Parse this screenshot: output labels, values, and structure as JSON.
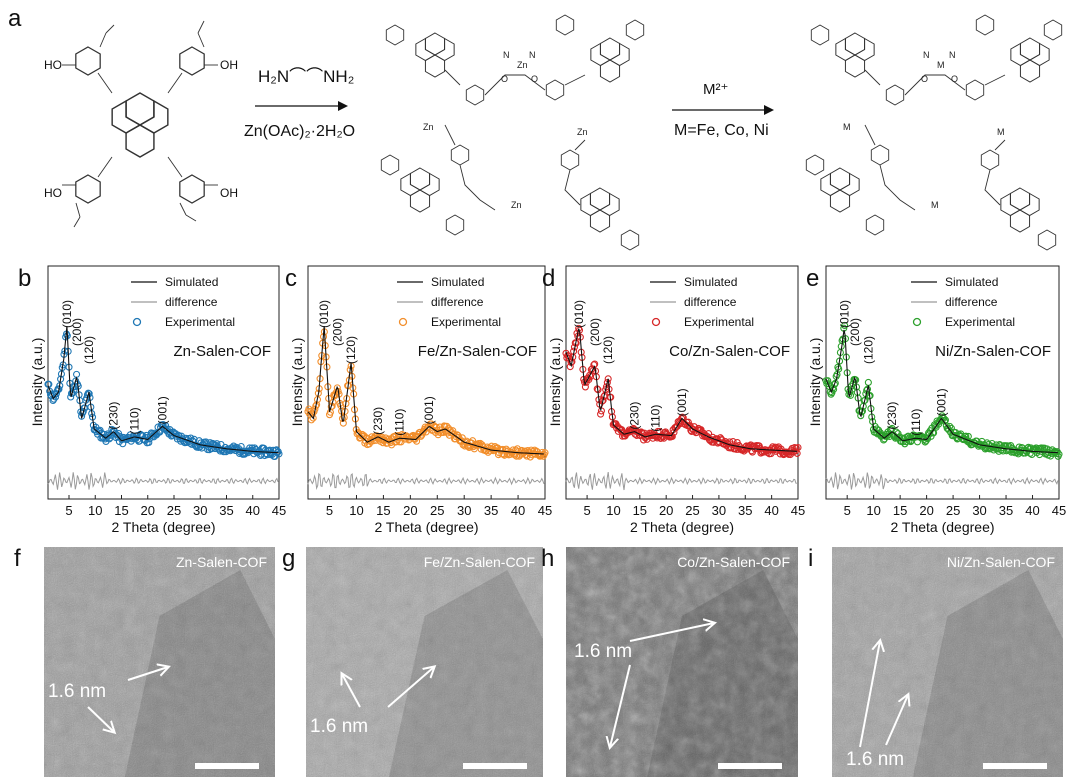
{
  "panel_labels": [
    "a",
    "b",
    "c",
    "d",
    "e",
    "f",
    "g",
    "h",
    "i"
  ],
  "scheme": {
    "reagent_top": "H₂N⌒⌒NH₂",
    "reagent_bottom": "Zn(OAc)₂·2H₂O",
    "step2_top": "M²⁺",
    "step2_bottom": "M=Fe, Co, Ni",
    "monomer_groups": [
      "HO",
      "HO",
      "OH",
      "OH"
    ],
    "cof_metal_1": "Zn",
    "cof_metal_2": "M",
    "atom_N": "N",
    "atom_O": "O"
  },
  "chart_data": [
    {
      "type": "scatter",
      "panel": "b",
      "title": "Zn-Salen-COF",
      "xlabel": "2 Theta (degree)",
      "ylabel": "Intensity (a.u.)",
      "xlim": [
        1,
        45
      ],
      "xticks": [
        5,
        10,
        15,
        20,
        25,
        30,
        35,
        40,
        45
      ],
      "legend": [
        "Simulated",
        "difference",
        "Experimental"
      ],
      "color": "#1f77b4",
      "peaks": [
        {
          "label": "(010)",
          "x": 4.6
        },
        {
          "label": "(200)",
          "x": 6.5
        },
        {
          "label": "(120)",
          "x": 8.8
        },
        {
          "label": "(230)",
          "x": 13.5
        },
        {
          "label": "(110)",
          "x": 17.5
        },
        {
          "label": "(001)",
          "x": 22.8
        }
      ],
      "profile": [
        [
          1,
          0.55
        ],
        [
          2,
          0.45
        ],
        [
          3,
          0.5
        ],
        [
          4,
          0.75
        ],
        [
          4.6,
          1.0
        ],
        [
          5.3,
          0.45
        ],
        [
          6.5,
          0.62
        ],
        [
          7.4,
          0.3
        ],
        [
          8.8,
          0.5
        ],
        [
          9.8,
          0.22
        ],
        [
          12,
          0.15
        ],
        [
          13.5,
          0.2
        ],
        [
          15,
          0.13
        ],
        [
          17.5,
          0.16
        ],
        [
          20,
          0.14
        ],
        [
          22.8,
          0.24
        ],
        [
          25,
          0.17
        ],
        [
          30,
          0.1
        ],
        [
          35,
          0.07
        ],
        [
          40,
          0.05
        ],
        [
          45,
          0.04
        ]
      ]
    },
    {
      "type": "scatter",
      "panel": "c",
      "title": "Fe/Zn-Salen-COF",
      "xlabel": "2 Theta (degree)",
      "ylabel": "Intensity (a.u.)",
      "xlim": [
        1,
        45
      ],
      "xticks": [
        5,
        10,
        15,
        20,
        25,
        30,
        35,
        40,
        45
      ],
      "legend": [
        "Simulated",
        "difference",
        "Experimental"
      ],
      "color": "#f28e2b",
      "peaks": [
        {
          "label": "(010)",
          "x": 4.0
        },
        {
          "label": "(200)",
          "x": 6.5
        },
        {
          "label": "(120)",
          "x": 9.0
        },
        {
          "label": "(230)",
          "x": 14.0
        },
        {
          "label": "(110)",
          "x": 18.0
        },
        {
          "label": "(001)",
          "x": 23.5
        }
      ],
      "profile": [
        [
          1,
          0.35
        ],
        [
          2,
          0.3
        ],
        [
          3,
          0.5
        ],
        [
          4,
          1.0
        ],
        [
          5,
          0.35
        ],
        [
          6.5,
          0.55
        ],
        [
          7.5,
          0.25
        ],
        [
          9,
          0.72
        ],
        [
          10,
          0.2
        ],
        [
          12,
          0.12
        ],
        [
          14,
          0.16
        ],
        [
          16,
          0.12
        ],
        [
          18,
          0.15
        ],
        [
          21,
          0.14
        ],
        [
          23.5,
          0.24
        ],
        [
          25,
          0.2
        ],
        [
          26.5,
          0.22
        ],
        [
          30,
          0.12
        ],
        [
          35,
          0.06
        ],
        [
          40,
          0.04
        ],
        [
          45,
          0.03
        ]
      ]
    },
    {
      "type": "scatter",
      "panel": "d",
      "title": "Co/Zn-Salen-COF",
      "xlabel": "2 Theta (degree)",
      "ylabel": "Intensity (a.u.)",
      "xlim": [
        1,
        45
      ],
      "xticks": [
        5,
        10,
        15,
        20,
        25,
        30,
        35,
        40,
        45
      ],
      "legend": [
        "Simulated",
        "difference",
        "Experimental"
      ],
      "color": "#d62728",
      "peaks": [
        {
          "label": "(010)",
          "x": 3.5
        },
        {
          "label": "(200)",
          "x": 6.5
        },
        {
          "label": "(120)",
          "x": 9.0
        },
        {
          "label": "(230)",
          "x": 14.0
        },
        {
          "label": "(110)",
          "x": 18.0
        },
        {
          "label": "(001)",
          "x": 23.0
        }
      ],
      "profile": [
        [
          1,
          0.8
        ],
        [
          2,
          0.7
        ],
        [
          3,
          0.9
        ],
        [
          3.5,
          1.0
        ],
        [
          4.5,
          0.55
        ],
        [
          6.5,
          0.7
        ],
        [
          7.5,
          0.35
        ],
        [
          9,
          0.6
        ],
        [
          10,
          0.25
        ],
        [
          12,
          0.18
        ],
        [
          14,
          0.2
        ],
        [
          16,
          0.16
        ],
        [
          18,
          0.18
        ],
        [
          21,
          0.17
        ],
        [
          23,
          0.3
        ],
        [
          25,
          0.22
        ],
        [
          28,
          0.16
        ],
        [
          32,
          0.1
        ],
        [
          36,
          0.07
        ],
        [
          40,
          0.06
        ],
        [
          45,
          0.05
        ]
      ]
    },
    {
      "type": "scatter",
      "panel": "e",
      "title": "Ni/Zn-Salen-COF",
      "xlabel": "2 Theta (degree)",
      "ylabel": "Intensity (a.u.)",
      "xlim": [
        1,
        45
      ],
      "xticks": [
        5,
        10,
        15,
        20,
        25,
        30,
        35,
        40,
        45
      ],
      "legend": [
        "Simulated",
        "difference",
        "Experimental"
      ],
      "color": "#2ca02c",
      "peaks": [
        {
          "label": "(010)",
          "x": 4.5
        },
        {
          "label": "(200)",
          "x": 6.5
        },
        {
          "label": "(120)",
          "x": 9.0
        },
        {
          "label": "(230)",
          "x": 13.5
        },
        {
          "label": "(110)",
          "x": 18.0
        },
        {
          "label": "(001)",
          "x": 22.8
        }
      ],
      "profile": [
        [
          1,
          0.6
        ],
        [
          2,
          0.5
        ],
        [
          3,
          0.6
        ],
        [
          4,
          0.85
        ],
        [
          4.5,
          1.0
        ],
        [
          5.3,
          0.45
        ],
        [
          6.5,
          0.62
        ],
        [
          7.5,
          0.3
        ],
        [
          9,
          0.55
        ],
        [
          10,
          0.22
        ],
        [
          12,
          0.15
        ],
        [
          13.5,
          0.2
        ],
        [
          15.5,
          0.13
        ],
        [
          18,
          0.15
        ],
        [
          20,
          0.14
        ],
        [
          22.8,
          0.3
        ],
        [
          25,
          0.18
        ],
        [
          30,
          0.1
        ],
        [
          35,
          0.07
        ],
        [
          40,
          0.05
        ],
        [
          45,
          0.04
        ]
      ]
    }
  ],
  "tem": [
    {
      "panel": "f",
      "title": "Zn-Salen-COF",
      "annotation": "1.6 nm"
    },
    {
      "panel": "g",
      "title": "Fe/Zn-Salen-COF",
      "annotation": "1.6 nm"
    },
    {
      "panel": "h",
      "title": "Co/Zn-Salen-COF",
      "annotation": "1.6 nm"
    },
    {
      "panel": "i",
      "title": "Ni/Zn-Salen-COF",
      "annotation": "1.6 nm"
    }
  ],
  "colors": {
    "axis": "#222222",
    "simulated": "#111111",
    "difference": "#9a9a9a",
    "tem_dark": "#3a3a3a",
    "tem_light": "#bdbdbd"
  }
}
